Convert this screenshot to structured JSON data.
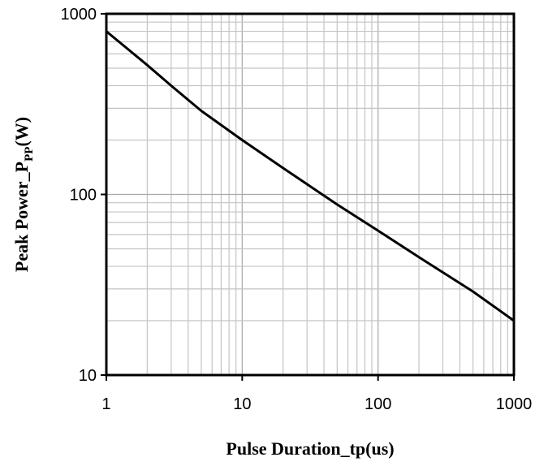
{
  "chart_data": {
    "type": "line",
    "xlabel": "Pulse Duration_tp(us)",
    "ylabel_main": "Peak Power_P",
    "ylabel_sub": "PP",
    "ylabel_unit": "(W)",
    "x_scale": "log",
    "y_scale": "log",
    "xlim": [
      1,
      1000
    ],
    "ylim": [
      10,
      1000
    ],
    "x_ticks": [
      1,
      10,
      100,
      1000
    ],
    "y_ticks": [
      10,
      100,
      1000
    ],
    "x_tick_labels": [
      "1",
      "10",
      "100",
      "1000"
    ],
    "y_tick_labels": [
      "10",
      "100",
      "1000"
    ],
    "grid": true,
    "minor_grid": true,
    "series": [
      {
        "color": "#000000",
        "x": [
          1,
          2,
          3,
          5,
          10,
          20,
          50,
          100,
          200,
          500,
          1000
        ],
        "y": [
          800,
          520,
          400,
          290,
          200,
          140,
          88,
          63,
          45,
          29,
          20
        ]
      }
    ]
  }
}
